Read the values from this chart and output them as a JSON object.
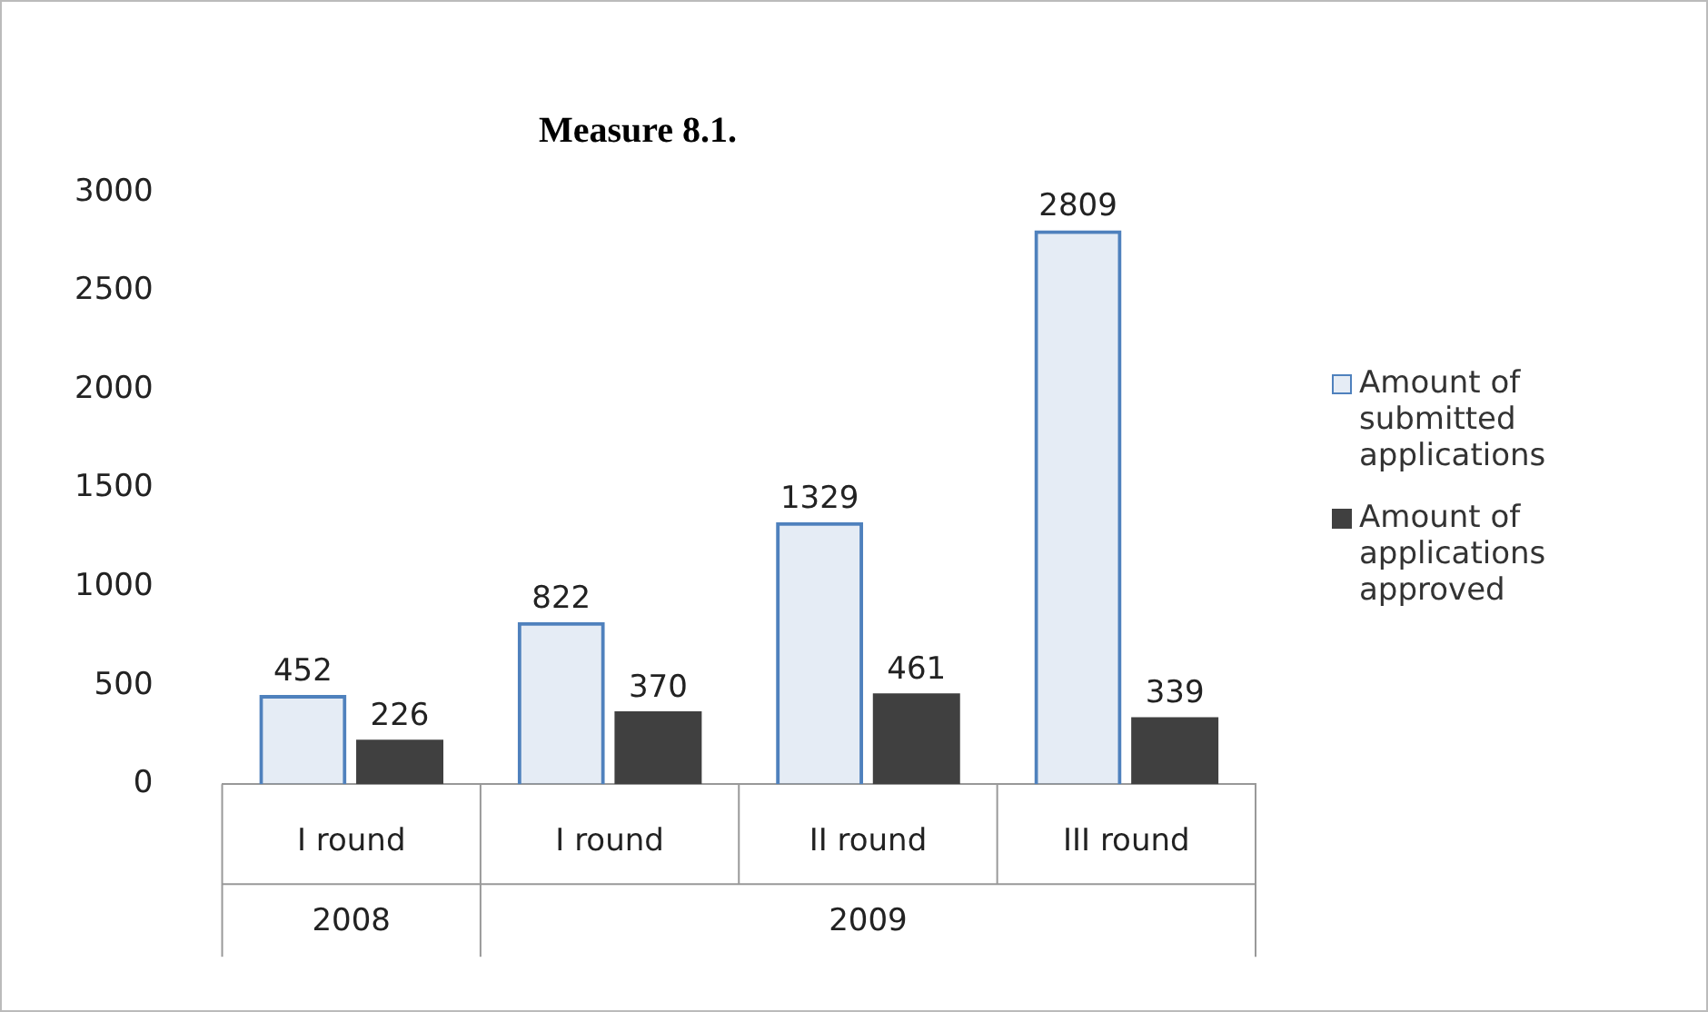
{
  "chart_data": {
    "type": "bar",
    "title": "Measure 8.1.",
    "categories": [
      "I round",
      "I round",
      "II round",
      "III round"
    ],
    "series": [
      {
        "name": "Amount of submitted applications",
        "color": "#4f81bd",
        "values": [
          452,
          822,
          1329,
          2809
        ]
      },
      {
        "name": "Amount of applications approved",
        "color": "#404040",
        "values": [
          226,
          370,
          461,
          339
        ]
      }
    ],
    "ylim": [
      0,
      3000
    ],
    "yticks": [
      0,
      500,
      1000,
      1500,
      2000,
      2500,
      3000
    ],
    "grid": false,
    "legend": "right",
    "data_labels": true,
    "annotations": [
      "2008",
      "2009"
    ]
  }
}
